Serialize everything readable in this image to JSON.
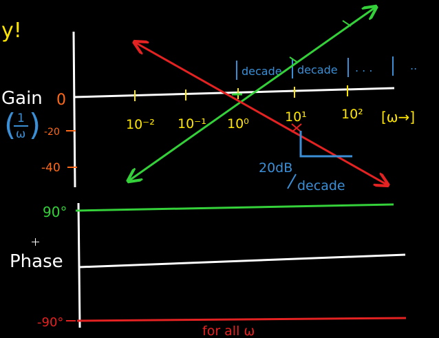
{
  "colors": {
    "background": "#000000",
    "axis": "#ffffff",
    "tick": "#ffe600",
    "decade": "#3a8fd6",
    "green": "#35d13a",
    "red": "#e52222",
    "orange": "#ff6a1a"
  },
  "fragment_top": "y!",
  "gain": {
    "label": "Gain",
    "zero": "0",
    "frac_num": "1",
    "frac_den": "ω",
    "minus20": "-20",
    "minus40": "-40"
  },
  "freq_ticks": [
    "10⁻²",
    "10⁻¹",
    "10⁰",
    "10¹",
    "10²"
  ],
  "axis_label": "[ω→]",
  "decade_labels": [
    "decade",
    "decade"
  ],
  "dots": ". . .",
  "slope": {
    "line1": "20dB",
    "line2": "decade"
  },
  "phase": {
    "label": "Phase",
    "plus90": "90°",
    "minus90": "-90°",
    "note": "for all ω"
  }
}
